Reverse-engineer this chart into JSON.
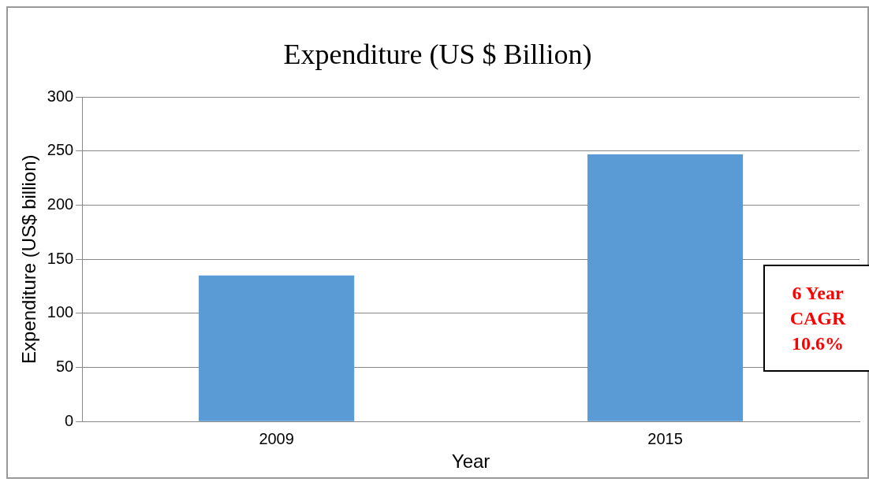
{
  "chart_data": {
    "type": "bar",
    "title": "Expenditure (US $ Billion)",
    "xlabel": "Year",
    "ylabel": "Expenditure (US$ billion)",
    "categories": [
      "2009",
      "2015"
    ],
    "series": [
      {
        "color": "#5b9bd5",
        "values": [
          135,
          247
        ]
      }
    ],
    "ylim": [
      0,
      300
    ],
    "yticks": [
      0,
      50,
      100,
      150,
      200,
      250,
      300
    ],
    "grid": "y",
    "annotations": [
      "6 Year CAGR 10.6%"
    ]
  }
}
